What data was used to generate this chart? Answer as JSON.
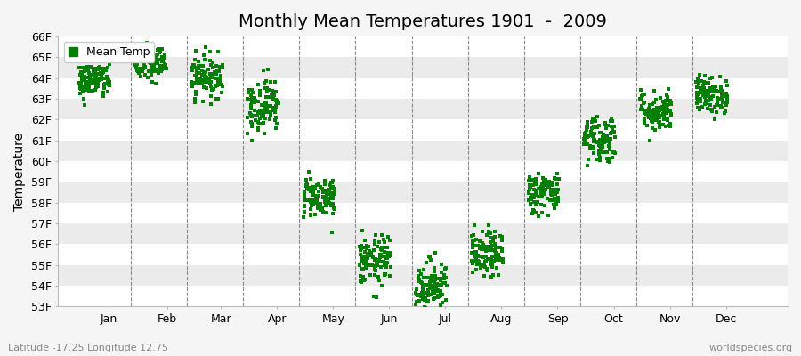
{
  "title": "Monthly Mean Temperatures 1901  -  2009",
  "ylabel": "Temperature",
  "xlabel_labels": [
    "Jan",
    "Feb",
    "Mar",
    "Apr",
    "May",
    "Jun",
    "Jul",
    "Aug",
    "Sep",
    "Oct",
    "Nov",
    "Dec"
  ],
  "ytick_labels": [
    "53F",
    "54F",
    "55F",
    "56F",
    "57F",
    "58F",
    "59F",
    "60F",
    "61F",
    "62F",
    "63F",
    "64F",
    "65F",
    "66F"
  ],
  "ytick_values": [
    53,
    54,
    55,
    56,
    57,
    58,
    59,
    60,
    61,
    62,
    63,
    64,
    65,
    66
  ],
  "ylim": [
    53,
    66
  ],
  "marker_color": "#008000",
  "marker": "s",
  "marker_size": 2.5,
  "legend_label": "Mean Temp",
  "subtitle_left": "Latitude -17.25 Longitude 12.75",
  "subtitle_right": "worldspecies.org",
  "background_color": "#f5f5f5",
  "band_colors": [
    "#ffffff",
    "#ebebeb"
  ],
  "title_fontsize": 14,
  "axis_fontsize": 10,
  "tick_fontsize": 9,
  "monthly_means": [
    63.9,
    64.7,
    64.1,
    62.7,
    58.3,
    55.2,
    54.0,
    55.5,
    58.5,
    61.1,
    62.4,
    63.2
  ],
  "monthly_spreads": [
    0.45,
    0.45,
    0.5,
    0.65,
    0.5,
    0.6,
    0.65,
    0.55,
    0.5,
    0.6,
    0.5,
    0.45
  ],
  "n_years": 109,
  "xlim_left": 0.0,
  "xlim_right": 13.0,
  "month_tick_positions": [
    0.9,
    1.95,
    2.9,
    3.9,
    4.9,
    5.9,
    6.9,
    7.9,
    8.9,
    9.9,
    10.9,
    11.9
  ],
  "month_centers": [
    0.65,
    1.65,
    2.65,
    3.65,
    4.65,
    5.65,
    6.65,
    7.65,
    8.65,
    9.65,
    10.65,
    11.65
  ],
  "dashed_line_positions": [
    1.3,
    2.3,
    3.3,
    4.3,
    5.3,
    6.3,
    7.3,
    8.3,
    9.3,
    10.3,
    11.3
  ]
}
